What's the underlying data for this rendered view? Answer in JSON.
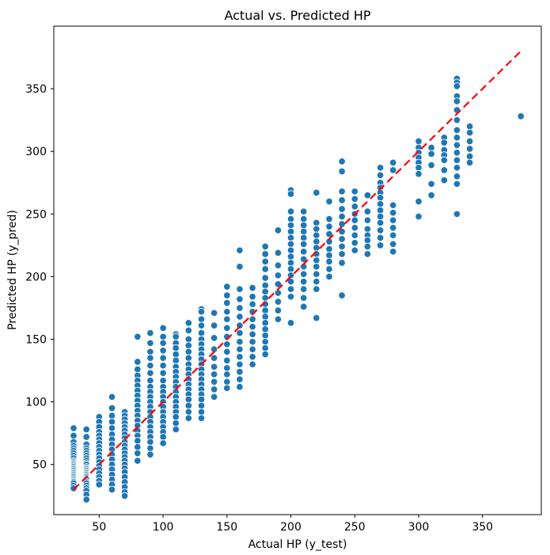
{
  "chart_data": {
    "type": "scatter",
    "title": "Actual vs. Predicted HP",
    "xlabel": "Actual HP (y_test)",
    "ylabel": "Predicted HP (y_pred)",
    "xlim": [
      14.5,
      396
    ],
    "ylim": [
      10,
      400
    ],
    "xticks": [
      50,
      100,
      150,
      200,
      250,
      300,
      350
    ],
    "yticks": [
      50,
      100,
      150,
      200,
      250,
      300,
      350
    ],
    "grid": false,
    "legend": "none",
    "marker": {
      "shape": "circle",
      "color": "#1f77b4",
      "edge_color": "#ffffff",
      "radius": 4.3
    },
    "reference_line": {
      "style": "dashed",
      "color": "#ff0000",
      "x": [
        30,
        380
      ],
      "y": [
        30,
        380
      ]
    },
    "points": [
      {
        "x": 30,
        "ys": [
          79,
          73,
          68,
          65,
          63,
          61,
          59,
          57,
          55,
          53,
          52,
          51,
          50,
          49,
          48,
          47,
          46,
          45,
          44,
          43,
          42,
          41,
          40,
          39,
          38,
          37,
          36,
          35,
          33,
          31
        ]
      },
      {
        "x": 40,
        "ys": [
          78,
          72,
          66,
          63,
          61,
          59,
          57,
          55,
          53,
          51,
          50,
          48,
          47,
          46,
          45,
          44,
          43,
          42,
          41,
          40,
          39,
          38,
          36,
          35,
          33,
          31,
          29,
          26,
          22
        ]
      },
      {
        "x": 50,
        "ys": [
          88,
          84,
          80,
          76,
          73,
          70,
          67,
          64,
          61,
          58,
          55,
          52,
          49,
          46,
          43,
          40,
          37,
          34
        ]
      },
      {
        "x": 60,
        "ys": [
          104,
          95,
          89,
          84,
          79,
          74,
          70,
          66,
          62,
          58,
          54,
          50,
          46,
          42,
          38,
          34,
          30
        ]
      },
      {
        "x": 70,
        "ys": [
          92,
          89,
          86,
          83,
          80,
          77,
          74,
          71,
          68,
          65,
          62,
          59,
          56,
          53,
          50,
          47,
          44,
          40,
          36,
          32,
          28,
          25
        ]
      },
      {
        "x": 80,
        "ys": [
          152,
          132,
          126,
          121,
          117,
          113,
          109,
          105,
          101,
          97,
          93,
          89,
          85,
          81,
          77,
          73,
          69,
          64,
          59,
          53
        ]
      },
      {
        "x": 90,
        "ys": [
          155,
          147,
          140,
          135,
          129,
          123,
          117,
          112,
          108,
          104,
          100,
          96,
          92,
          88,
          84,
          80,
          76,
          72,
          68,
          63,
          58
        ]
      },
      {
        "x": 100,
        "ys": [
          159,
          152,
          147,
          141,
          135,
          129,
          123,
          117,
          112,
          108,
          104,
          100,
          96,
          92,
          88,
          84,
          80,
          76,
          72,
          67
        ]
      },
      {
        "x": 110,
        "ys": [
          154,
          152,
          147,
          143,
          138,
          133,
          128,
          124,
          120,
          116,
          112,
          108,
          104,
          100,
          96,
          92,
          88,
          83,
          78
        ]
      },
      {
        "x": 120,
        "ys": [
          163,
          157,
          150,
          145,
          140,
          135,
          130,
          126,
          122,
          118,
          114,
          110,
          106,
          102,
          97,
          92,
          87
        ]
      },
      {
        "x": 130,
        "ys": [
          174,
          172,
          166,
          161,
          155,
          150,
          146,
          142,
          138,
          134,
          130,
          126,
          122,
          118,
          114,
          110,
          106,
          102,
          97,
          92,
          87
        ]
      },
      {
        "x": 140,
        "ys": [
          171,
          161,
          151,
          142,
          135,
          128,
          122,
          116,
          110,
          104
        ]
      },
      {
        "x": 150,
        "ys": [
          192,
          185,
          179,
          172,
          166,
          159,
          152,
          146,
          140,
          133,
          127,
          122,
          116,
          111
        ]
      },
      {
        "x": 160,
        "ys": [
          221,
          208,
          190,
          182,
          175,
          168,
          161,
          155,
          148,
          142,
          136,
          130,
          124,
          118,
          112
        ]
      },
      {
        "x": 170,
        "ys": [
          191,
          184,
          178,
          172,
          166,
          160,
          154,
          148,
          142,
          136,
          130
        ]
      },
      {
        "x": 180,
        "ys": [
          224,
          218,
          212,
          206,
          199,
          193,
          188,
          183,
          178,
          173,
          168,
          163,
          158,
          153,
          148,
          143,
          138
        ]
      },
      {
        "x": 190,
        "ys": [
          237,
          219,
          209,
          201,
          194,
          187,
          180,
          173,
          166
        ]
      },
      {
        "x": 200,
        "ys": [
          269,
          266,
          252,
          246,
          241,
          236,
          231,
          226,
          221,
          216,
          211,
          206,
          201,
          196,
          190,
          184,
          163
        ]
      },
      {
        "x": 210,
        "ys": [
          252,
          246,
          241,
          236,
          231,
          226,
          220,
          214,
          208,
          202,
          196,
          190,
          183,
          176
        ]
      },
      {
        "x": 220,
        "ys": [
          267,
          243,
          238,
          233,
          228,
          223,
          218,
          213,
          208,
          202,
          196,
          190,
          167
        ]
      },
      {
        "x": 230,
        "ys": [
          260,
          246,
          240,
          234,
          228,
          222,
          217,
          212,
          206,
          200
        ]
      },
      {
        "x": 240,
        "ys": [
          292,
          284,
          268,
          261,
          254,
          248,
          242,
          236,
          230,
          224,
          218,
          211,
          185
        ]
      },
      {
        "x": 250,
        "ys": [
          268,
          262,
          256,
          250,
          245,
          239,
          233,
          227,
          221
        ]
      },
      {
        "x": 260,
        "ys": [
          265,
          252,
          245,
          238,
          233,
          229,
          224,
          218
        ]
      },
      {
        "x": 270,
        "ys": [
          287,
          281,
          275,
          271,
          267,
          263,
          258,
          253,
          248,
          243,
          237,
          231,
          225
        ]
      },
      {
        "x": 280,
        "ys": [
          291,
          285,
          257,
          251,
          245,
          239,
          233,
          226,
          220
        ]
      },
      {
        "x": 300,
        "ys": [
          308,
          303,
          299,
          295,
          291,
          287,
          282,
          260,
          248
        ]
      },
      {
        "x": 310,
        "ys": [
          303,
          298,
          289,
          274,
          265
        ]
      },
      {
        "x": 320,
        "ys": [
          311,
          307,
          301,
          297,
          293,
          285,
          277
        ]
      },
      {
        "x": 330,
        "ys": [
          358,
          355,
          352,
          344,
          340,
          333,
          325,
          317,
          311,
          305,
          299,
          293,
          287,
          280,
          274,
          250
        ]
      },
      {
        "x": 340,
        "ys": [
          320,
          315,
          308,
          302,
          296,
          291
        ]
      },
      {
        "x": 380,
        "ys": [
          328
        ]
      }
    ]
  }
}
